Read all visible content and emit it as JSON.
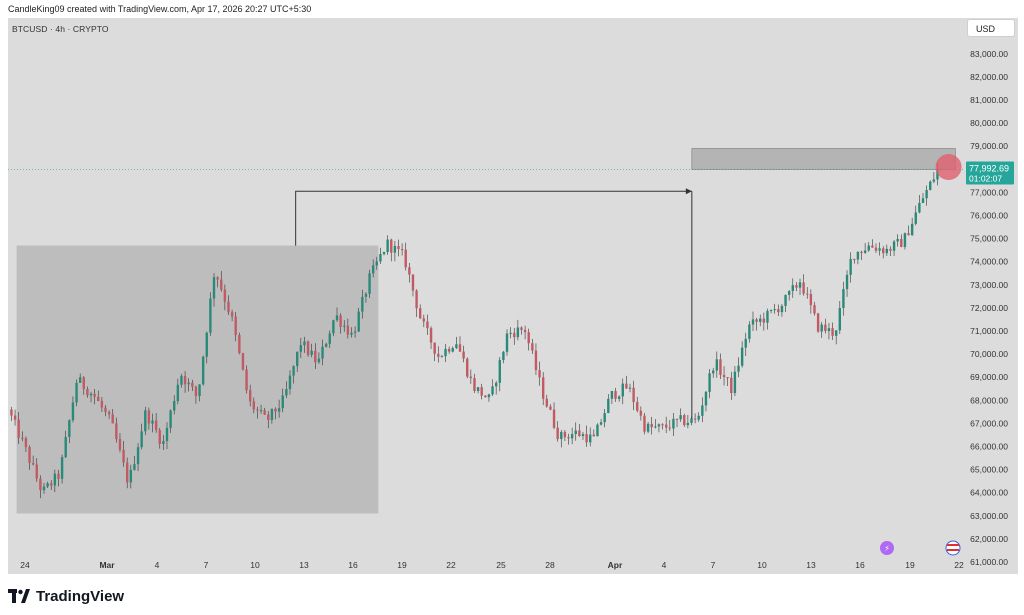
{
  "header": {
    "credit": "CandleKing09 created with TradingView.com, Apr 17, 2026 20:27 UTC+5:30"
  },
  "symbol_line": "BTCUSD · 4h · CRYPTO",
  "currency_button": "USD",
  "footer": {
    "brand": "TradingView"
  },
  "colors": {
    "background": "#dcdcdc",
    "up": "#2a8a7a",
    "down": "#c25a63",
    "price_label_bg": "#26a69a",
    "zone": "#bdbdbd",
    "target_zone": "#b4b4b4",
    "marker": "#e0606e"
  },
  "current_price": {
    "value": "77,992.69",
    "countdown": "01:02:07"
  },
  "chart_data": {
    "type": "candlestick",
    "title": "",
    "y_axis": {
      "ticks": [
        "83,000.00",
        "82,000.00",
        "81,000.00",
        "80,000.00",
        "79,000.00",
        "78,000.00",
        "77,000.00",
        "76,000.00",
        "75,000.00",
        "74,000.00",
        "73,000.00",
        "72,000.00",
        "71,000.00",
        "70,000.00",
        "69,000.00",
        "68,000.00",
        "67,000.00",
        "66,000.00",
        "65,000.00",
        "64,000.00",
        "63,000.00",
        "62,000.00",
        "61,000.00"
      ],
      "range": [
        61000,
        83600
      ]
    },
    "x_axis": {
      "ticks": [
        "24",
        "Mar",
        "4",
        "7",
        "10",
        "13",
        "16",
        "19",
        "22",
        "25",
        "28",
        "Apr",
        "4",
        "7",
        "10",
        "13",
        "16",
        "19",
        "22"
      ],
      "bold": [
        "Mar",
        "Apr"
      ]
    },
    "price_path": [
      [
        0,
        67600
      ],
      [
        1,
        65900
      ],
      [
        2,
        64000
      ],
      [
        3,
        64800
      ],
      [
        4,
        68900
      ],
      [
        5,
        68200
      ],
      [
        6,
        67000
      ],
      [
        7,
        64400
      ],
      [
        8,
        67500
      ],
      [
        9,
        66100
      ],
      [
        10,
        69200
      ],
      [
        11,
        68100
      ],
      [
        12,
        73700
      ],
      [
        13,
        71500
      ],
      [
        14,
        67900
      ],
      [
        15,
        67100
      ],
      [
        16,
        68000
      ],
      [
        17,
        70500
      ],
      [
        18,
        69600
      ],
      [
        19,
        71700
      ],
      [
        20,
        70800
      ],
      [
        21,
        73300
      ],
      [
        22,
        74800
      ],
      [
        23,
        74200
      ],
      [
        24,
        71400
      ],
      [
        25,
        69900
      ],
      [
        26,
        70600
      ],
      [
        27,
        68600
      ],
      [
        28,
        68000
      ],
      [
        29,
        70900
      ],
      [
        30,
        71100
      ],
      [
        31,
        68400
      ],
      [
        32,
        66400
      ],
      [
        33,
        66600
      ],
      [
        34,
        66300
      ],
      [
        35,
        68200
      ],
      [
        36,
        68600
      ],
      [
        37,
        66800
      ],
      [
        38,
        66800
      ],
      [
        39,
        67100
      ],
      [
        40,
        67100
      ],
      [
        41,
        69700
      ],
      [
        42,
        68500
      ],
      [
        43,
        71200
      ],
      [
        44,
        71600
      ],
      [
        45,
        72200
      ],
      [
        46,
        73200
      ],
      [
        47,
        71200
      ],
      [
        48,
        70900
      ],
      [
        49,
        74300
      ],
      [
        50,
        74700
      ],
      [
        51,
        74500
      ],
      [
        52,
        74900
      ],
      [
        53,
        76600
      ],
      [
        54,
        77993
      ]
    ],
    "annotations": {
      "accumulation_box": {
        "time": [
          0.5,
          21.5
        ],
        "price": [
          63100,
          74700
        ]
      },
      "target_zone": {
        "time": [
          39.7,
          55.0
        ],
        "price": [
          78000,
          78900
        ]
      },
      "arrow_path": [
        [
          16.7,
          74700
        ],
        [
          16.7,
          77050
        ],
        [
          39.7,
          77050
        ]
      ],
      "arrow_drop": [
        [
          39.7,
          77050
        ],
        [
          39.7,
          67200
        ]
      ],
      "current_marker": {
        "time": 54.2,
        "price": 78100
      }
    }
  }
}
